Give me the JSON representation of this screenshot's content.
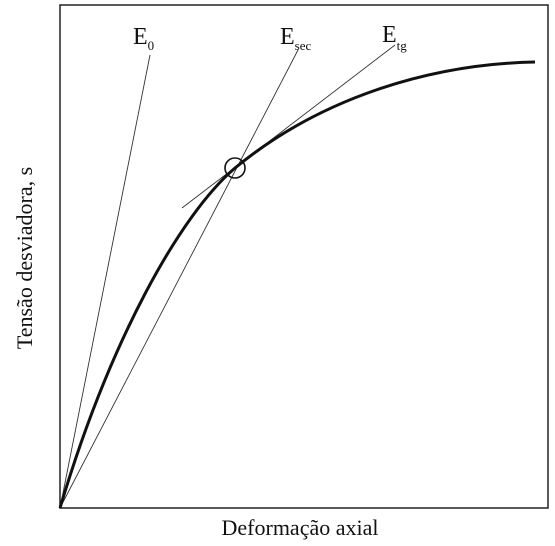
{
  "labels": {
    "e0": {
      "symbol": "E",
      "subscript": "0"
    },
    "esec": {
      "symbol": "E",
      "subscript": "sec"
    },
    "etg": {
      "symbol": "E",
      "subscript": "tg"
    }
  },
  "y_axis_label": "Tensão desviadora, s",
  "x_axis_label": "Deformação axial"
}
